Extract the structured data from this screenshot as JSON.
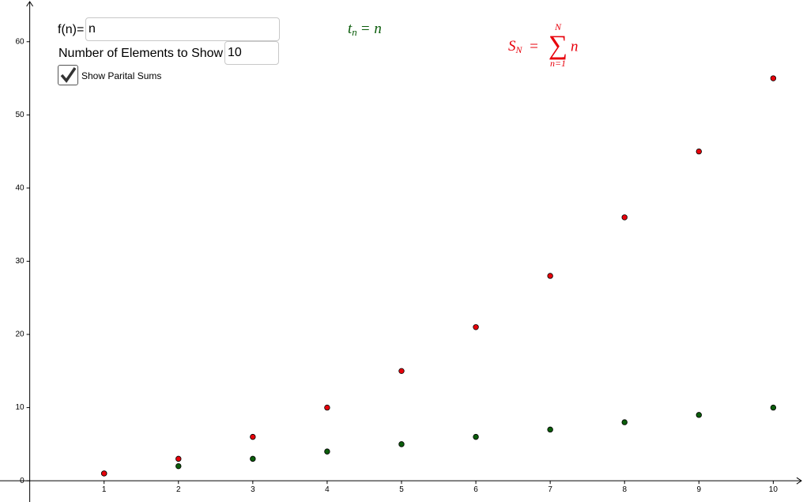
{
  "chart_data": {
    "type": "scatter",
    "x": [
      1,
      2,
      3,
      4,
      5,
      6,
      7,
      8,
      9,
      10
    ],
    "series": [
      {
        "color": "#0b5d0b",
        "values": [
          1,
          2,
          3,
          4,
          5,
          6,
          7,
          8,
          9,
          10
        ]
      },
      {
        "color": "#e8000b",
        "values": [
          1,
          3,
          6,
          10,
          15,
          21,
          28,
          36,
          45,
          55
        ]
      }
    ],
    "xlim": [
      -0.4,
      10.4
    ],
    "ylim": [
      -2.9,
      65.7
    ],
    "xticks": [
      1,
      2,
      3,
      4,
      5,
      6,
      7,
      8,
      9,
      10
    ],
    "yticks": [
      0,
      10,
      20,
      30,
      40,
      50,
      60
    ]
  },
  "controls": {
    "function_label": "f(n)=",
    "function_input": "n",
    "count_label": "Number of Elements to Show",
    "count_input": "10",
    "checkbox_label": "Show Parital Sums",
    "checked": true
  },
  "formulas": {
    "term": {
      "base": "t",
      "sub": "n",
      "rest": "= n",
      "color": "#0b5d0b"
    },
    "sum": {
      "lhs": "S",
      "lhs_sub": "N",
      "eq": "=",
      "sigma": "∑",
      "upper": "N",
      "lower": "n=1",
      "body": "n",
      "color": "#e8000b"
    }
  }
}
